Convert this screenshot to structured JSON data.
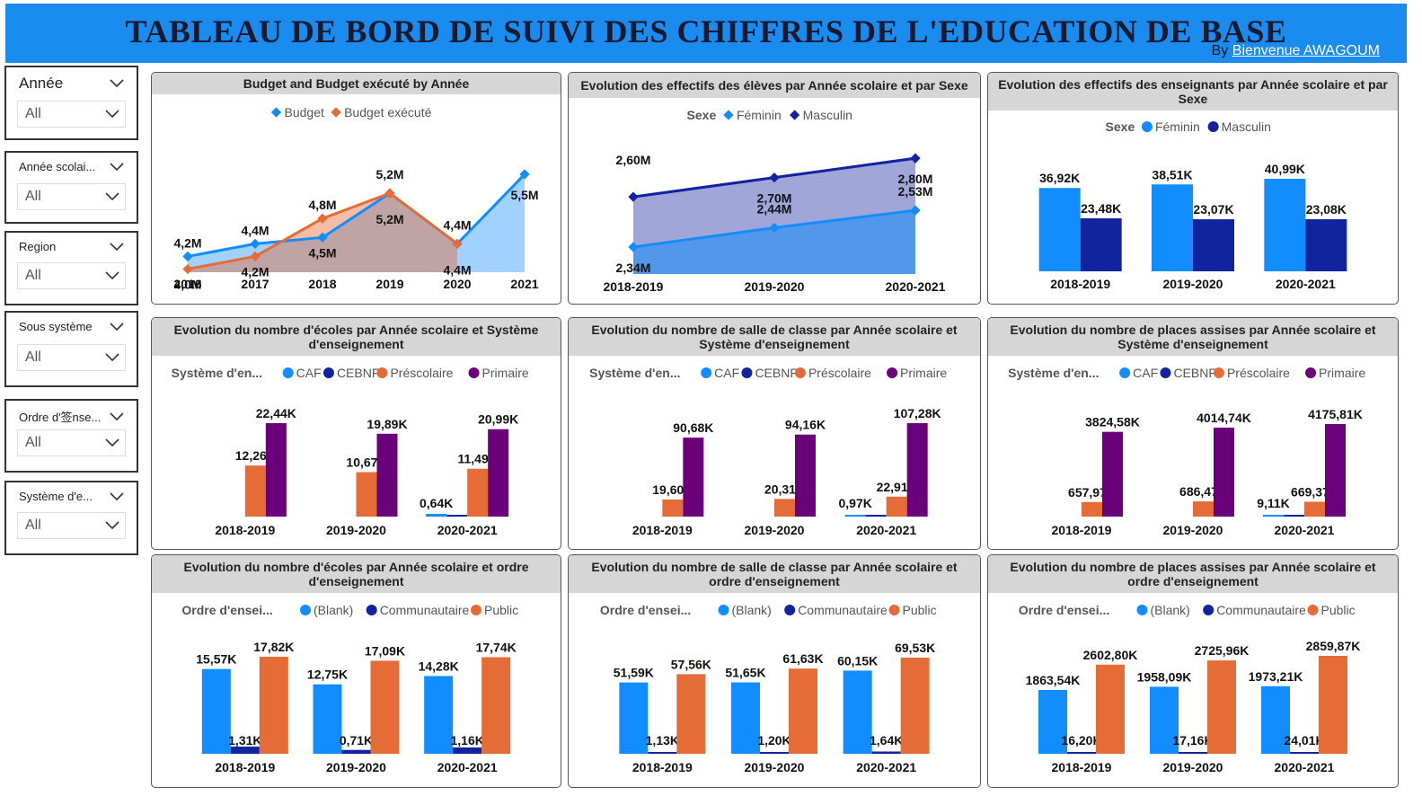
{
  "header": {
    "title": "TABLEAU DE BORD DE SUIVI DES CHIFFRES DE L'EDUCATION DE BASE",
    "by_label": "By",
    "author": "Bienvenue AWAGOUM"
  },
  "slicers": [
    {
      "label": "Année",
      "value": "All"
    },
    {
      "label": "Année scolai...",
      "value": "All"
    },
    {
      "label": "Region",
      "value": "All"
    },
    {
      "label": "Sous système",
      "value": "All"
    },
    {
      "label": "Ordre d'签nse...",
      "value": "All"
    },
    {
      "label": "Système d'e...",
      "value": "All"
    }
  ],
  "colors": {
    "header": "#1a8cf0",
    "light_blue": "#118dff",
    "dark_blue": "#12239e",
    "orange": "#e66c37",
    "purple": "#6b007b",
    "panel_header": "#d6d6d6"
  },
  "chart_data": [
    {
      "id": "budget",
      "type": "area",
      "title": "Budget and Budget exécuté by Année",
      "categories": [
        "2016",
        "2017",
        "2018",
        "2019",
        "2020",
        "2021"
      ],
      "series": [
        {
          "name": "Budget",
          "values": [
            4.2,
            4.4,
            4.5,
            5.2,
            4.4,
            5.5
          ],
          "labels": [
            "4,2M",
            "4,4M",
            "4,5M",
            "5,2M",
            "4,4M",
            "5,5M"
          ]
        },
        {
          "name": "Budget exécuté",
          "values": [
            4.0,
            4.2,
            4.8,
            5.2,
            4.4,
            null
          ],
          "labels": [
            "4,0M",
            "4,2M",
            "4,8M",
            "5,2M",
            "4,4M",
            ""
          ]
        }
      ],
      "ylim": [
        3.95,
        5.6
      ],
      "legend": "top-center"
    },
    {
      "id": "eleves",
      "type": "area",
      "title": "Evolution des effectifs des élèves par Année scolaire et par Sexe",
      "legend_title": "Sexe",
      "categories": [
        "2018-2019",
        "2019-2020",
        "2020-2021"
      ],
      "series": [
        {
          "name": "Féminin",
          "values": [
            2.34,
            2.44,
            2.53
          ],
          "labels": [
            "2,34M",
            "2,44M",
            "2,53M"
          ]
        },
        {
          "name": "Masculin",
          "values": [
            2.6,
            2.7,
            2.8
          ],
          "labels": [
            "2,60M",
            "2,70M",
            "2,80M"
          ]
        }
      ],
      "ylim": [
        2.2,
        2.88
      ],
      "legend": "top-center"
    },
    {
      "id": "enseignants",
      "type": "bar",
      "title": "Evolution des effectifs des enseignants par Année scolaire et par Sexe",
      "legend_title": "Sexe",
      "categories": [
        "2018-2019",
        "2019-2020",
        "2020-2021"
      ],
      "series": [
        {
          "name": "Féminin",
          "values": [
            36.92,
            38.51,
            40.99
          ],
          "labels": [
            "36,92K",
            "38,51K",
            "40,99K"
          ]
        },
        {
          "name": "Masculin",
          "values": [
            23.48,
            23.07,
            23.08
          ],
          "labels": [
            "23,48K",
            "23,07K",
            "23,08K"
          ]
        }
      ],
      "ylim": [
        0,
        41
      ],
      "legend": "top-center"
    },
    {
      "id": "ecoles_systeme",
      "type": "bar",
      "title": "Evolution du nombre d'écoles par Année scolaire et Système d'enseignement",
      "legend_title": "Système d'en...",
      "categories": [
        "2018-2019",
        "2019-2020",
        "2020-2021"
      ],
      "series": [
        {
          "name": "CAF",
          "values": [
            0,
            0,
            0.64
          ],
          "labels": [
            "",
            "",
            "0,64K"
          ]
        },
        {
          "name": "CEBNF",
          "values": [
            0,
            0,
            0.05
          ],
          "labels": [
            "",
            "",
            ""
          ]
        },
        {
          "name": "Préscolaire",
          "values": [
            12.26,
            10.67,
            11.49
          ],
          "labels": [
            "12,26K",
            "10,67K",
            "11,49K"
          ]
        },
        {
          "name": "Primaire",
          "values": [
            22.44,
            19.89,
            20.99
          ],
          "labels": [
            "22,44K",
            "19,89K",
            "20,99K"
          ]
        }
      ],
      "ylim": [
        0,
        22.44
      ],
      "legend": "top-center"
    },
    {
      "id": "salles_systeme",
      "type": "bar",
      "title": "Evolution du nombre de salle de classe par Année scolaire et Système d'enseignement",
      "legend_title": "Système d'en...",
      "categories": [
        "2018-2019",
        "2019-2020",
        "2020-2021"
      ],
      "series": [
        {
          "name": "CAF",
          "values": [
            0,
            0,
            0.97
          ],
          "labels": [
            "",
            "",
            "0,97K"
          ]
        },
        {
          "name": "CEBNF",
          "values": [
            0,
            0,
            0.1
          ],
          "labels": [
            "",
            "",
            ""
          ]
        },
        {
          "name": "Préscolaire",
          "values": [
            19.6,
            20.31,
            22.91
          ],
          "labels": [
            "19,60K",
            "20,31K",
            "22,91K"
          ]
        },
        {
          "name": "Primaire",
          "values": [
            90.68,
            94.16,
            107.28
          ],
          "labels": [
            "90,68K",
            "94,16K",
            "107,28K"
          ]
        }
      ],
      "ylim": [
        0,
        107.28
      ],
      "legend": "top-center"
    },
    {
      "id": "places_systeme",
      "type": "bar",
      "title": "Evolution du nombre de places assises par Année scolaire et Système d'enseignement",
      "legend_title": "Système d'en...",
      "categories": [
        "2018-2019",
        "2019-2020",
        "2020-2021"
      ],
      "series": [
        {
          "name": "CAF",
          "values": [
            0,
            0,
            9.11
          ],
          "labels": [
            "",
            "",
            "9,11K"
          ]
        },
        {
          "name": "CEBNF",
          "values": [
            0,
            0,
            2
          ],
          "labels": [
            "",
            "",
            ""
          ]
        },
        {
          "name": "Préscolaire",
          "values": [
            657.97,
            686.47,
            669.37
          ],
          "labels": [
            "657,97K",
            "686,47K",
            "669,37K"
          ]
        },
        {
          "name": "Primaire",
          "values": [
            3824.58,
            4014.74,
            4175.81
          ],
          "labels": [
            "3824,58K",
            "4014,74K",
            "4175,81K"
          ]
        }
      ],
      "ylim": [
        0,
        4175.81
      ],
      "legend": "top-center"
    },
    {
      "id": "ecoles_ordre",
      "type": "bar",
      "title": "Evolution du nombre d'écoles par Année scolaire et ordre d'enseignement",
      "legend_title": "Ordre d'ensei...",
      "categories": [
        "2018-2019",
        "2019-2020",
        "2020-2021"
      ],
      "series": [
        {
          "name": "(Blank)",
          "values": [
            15.57,
            12.75,
            14.28
          ],
          "labels": [
            "15,57K",
            "12,75K",
            "14,28K"
          ]
        },
        {
          "name": "Communautaire",
          "values": [
            1.31,
            0.71,
            1.16
          ],
          "labels": [
            "1,31K",
            "0,71K",
            "1,16K"
          ]
        },
        {
          "name": "Public",
          "values": [
            17.82,
            17.09,
            17.74
          ],
          "labels": [
            "17,82K",
            "17,09K",
            "17,74K"
          ]
        }
      ],
      "ylim": [
        0,
        17.82
      ],
      "legend": "top-center"
    },
    {
      "id": "salles_ordre",
      "type": "bar",
      "title": "Evolution du nombre de salle de classe par Année scolaire et ordre d'enseignement",
      "legend_title": "Ordre d'ensei...",
      "categories": [
        "2018-2019",
        "2019-2020",
        "2020-2021"
      ],
      "series": [
        {
          "name": "(Blank)",
          "values": [
            51.59,
            51.65,
            60.15
          ],
          "labels": [
            "51,59K",
            "51,65K",
            "60,15K"
          ]
        },
        {
          "name": "Communautaire",
          "values": [
            1.13,
            1.2,
            1.64
          ],
          "labels": [
            "1,13K",
            "1,20K",
            "1,64K"
          ]
        },
        {
          "name": "Public",
          "values": [
            57.56,
            61.63,
            69.53
          ],
          "labels": [
            "57,56K",
            "61,63K",
            "69,53K"
          ]
        }
      ],
      "ylim": [
        0,
        69.53
      ],
      "legend": "top-center"
    },
    {
      "id": "places_ordre",
      "type": "bar",
      "title": "Evolution du nombre de places assises par Année scolaire et ordre d'enseignement",
      "legend_title": "Ordre d'ensei...",
      "categories": [
        "2018-2019",
        "2019-2020",
        "2020-2021"
      ],
      "series": [
        {
          "name": "(Blank)",
          "values": [
            1863.54,
            1958.09,
            1973.21
          ],
          "labels": [
            "1863,54K",
            "1958,09K",
            "1973,21K"
          ]
        },
        {
          "name": "Communautaire",
          "values": [
            16.2,
            17.16,
            24.01
          ],
          "labels": [
            "16,20K",
            "17,16K",
            "24,01K"
          ]
        },
        {
          "name": "Public",
          "values": [
            2602.8,
            2725.96,
            2859.87
          ],
          "labels": [
            "2602,80K",
            "2725,96K",
            "2859,87K"
          ]
        }
      ],
      "ylim": [
        0,
        2859.87
      ],
      "legend": "top-center"
    }
  ]
}
